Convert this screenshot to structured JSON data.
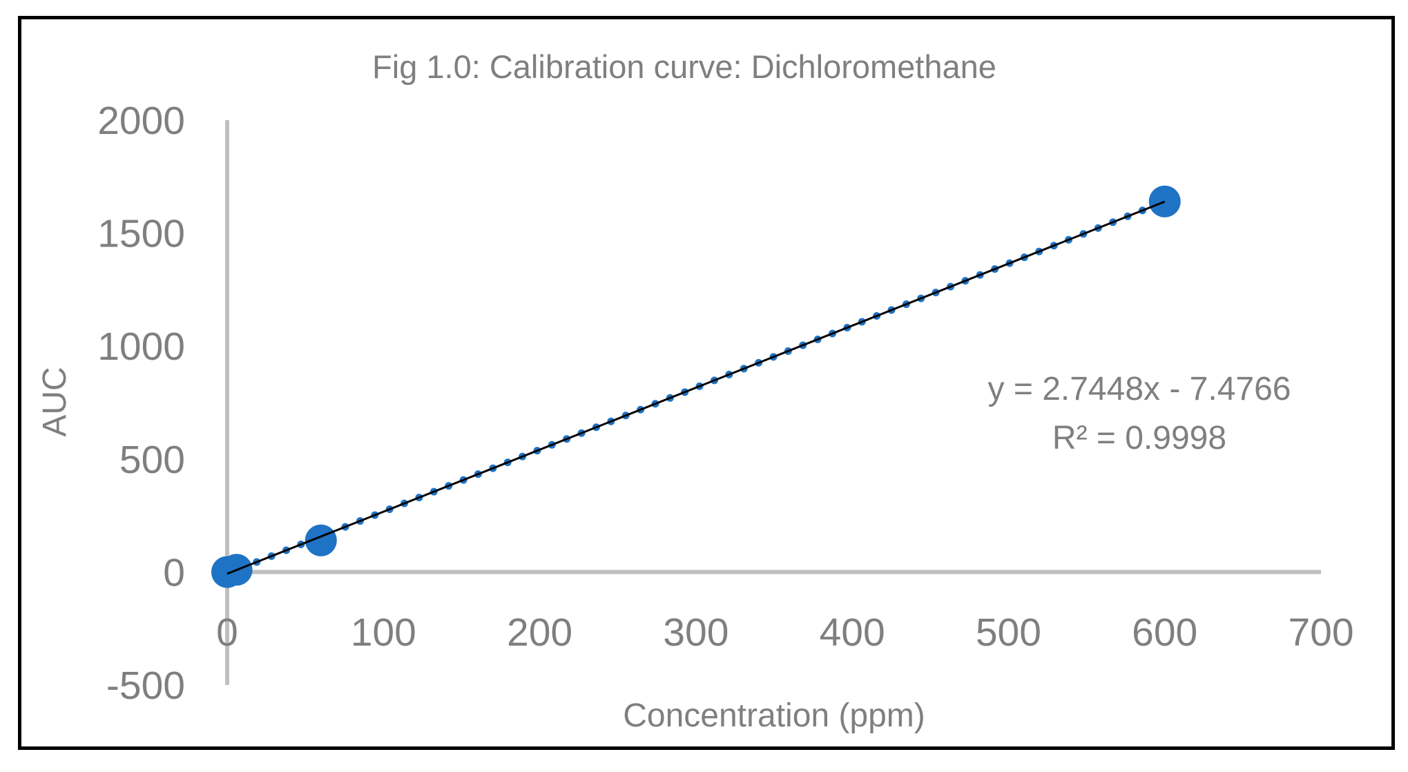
{
  "chart_data": {
    "type": "scatter",
    "title": "Fig 1.0: Calibration curve: Dichloromethane",
    "xlabel": "Concentration (ppm)",
    "ylabel": "AUC",
    "xlim": [
      0,
      700
    ],
    "ylim": [
      -500,
      2000
    ],
    "x_ticks": [
      "0",
      "100",
      "200",
      "300",
      "400",
      "500",
      "600",
      "700"
    ],
    "y_ticks": [
      "-500",
      "0",
      "500",
      "1000",
      "1500",
      "2000"
    ],
    "grid": false,
    "series": [
      {
        "name": "AUC",
        "x": [
          0,
          6,
          60,
          600
        ],
        "y": [
          0,
          10,
          140,
          1640
        ],
        "color": "#1f73c4"
      }
    ],
    "trendline": {
      "type": "linear",
      "slope": 2.7448,
      "intercept": -7.4766,
      "equation": "y = 2.7448x - 7.4766",
      "r2_label": "R² = 0.9998",
      "color": "#000000",
      "dot_color": "#1f73c4"
    },
    "axis_color": "#bfbfbf"
  }
}
